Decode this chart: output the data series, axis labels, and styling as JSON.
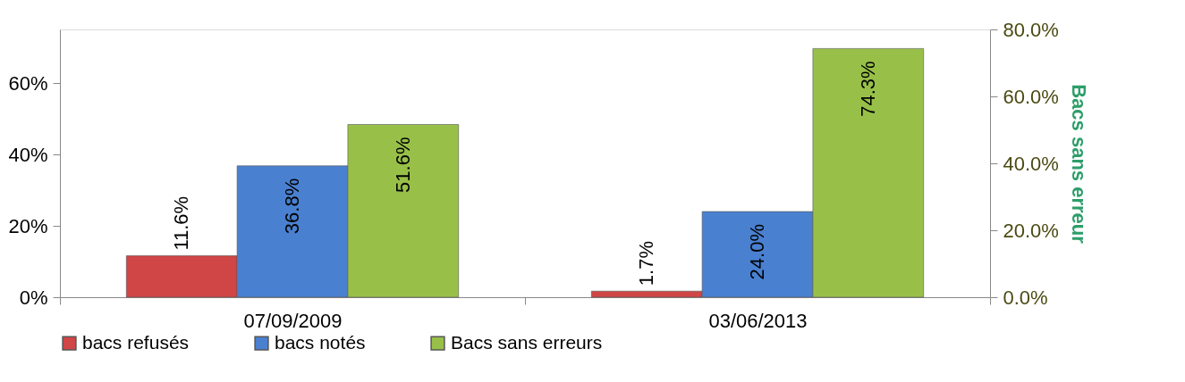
{
  "chart_data": {
    "type": "bar",
    "categories": [
      "07/09/2009",
      "03/06/2013"
    ],
    "series": [
      {
        "name": "bacs refusés",
        "color": "#d04545",
        "values": [
          11.6,
          1.7
        ],
        "value_labels": [
          "11.6%",
          "1.7%"
        ]
      },
      {
        "name": "bacs notés",
        "color": "#4a80d0",
        "values": [
          36.8,
          24.0
        ],
        "value_labels": [
          "36.8%",
          "24.0%"
        ]
      },
      {
        "name": "Bacs sans erreurs",
        "color": "#98c048",
        "values": [
          51.6,
          74.3
        ],
        "value_labels": [
          "51.6%",
          "74.3%"
        ],
        "axis": "y2"
      }
    ],
    "ylim": [
      0,
      75
    ],
    "yticks": [
      {
        "value": 0,
        "label": "0%"
      },
      {
        "value": 20,
        "label": "20%"
      },
      {
        "value": 40,
        "label": "40%"
      },
      {
        "value": 60,
        "label": "60%"
      }
    ],
    "y2lim": [
      0,
      80
    ],
    "y2ticks": [
      {
        "value": 0,
        "label": "0.0%"
      },
      {
        "value": 20,
        "label": "20.0%"
      },
      {
        "value": 40,
        "label": "40.0%"
      },
      {
        "value": 60,
        "label": "60.0%"
      },
      {
        "value": 80,
        "label": "80.0%"
      }
    ],
    "y2label": "Bacs sans erreur",
    "legend": "bottom",
    "grid": false
  }
}
